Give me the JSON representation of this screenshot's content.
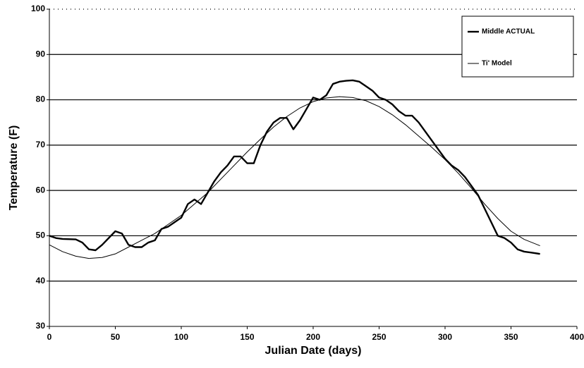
{
  "chart_data": {
    "type": "line",
    "xlabel": "Julian Date (days)",
    "ylabel": "Temperature (F)",
    "xlim": [
      0,
      400
    ],
    "xticks": [
      0,
      50,
      100,
      150,
      200,
      250,
      300,
      350,
      400
    ],
    "ylim": [
      30,
      100
    ],
    "yticks": [
      30,
      40,
      50,
      60,
      70,
      80,
      90,
      100
    ],
    "grid": true,
    "legend": "upper right",
    "series": [
      {
        "name": "Middle ACTUAL",
        "color": "#000000",
        "x": [
          0,
          5,
          10,
          20,
          25,
          30,
          35,
          40,
          45,
          50,
          55,
          60,
          65,
          70,
          75,
          80,
          85,
          90,
          95,
          100,
          105,
          110,
          115,
          120,
          125,
          130,
          135,
          140,
          145,
          150,
          155,
          160,
          165,
          170,
          175,
          180,
          185,
          190,
          195,
          200,
          205,
          210,
          215,
          220,
          225,
          230,
          235,
          240,
          245,
          250,
          255,
          260,
          265,
          270,
          275,
          280,
          285,
          290,
          295,
          300,
          305,
          310,
          315,
          320,
          325,
          330,
          335,
          340,
          345,
          350,
          355,
          360,
          365,
          372
        ],
        "values": [
          50,
          49.5,
          49.3,
          49.2,
          48.5,
          47,
          46.8,
          48,
          49.5,
          51,
          50.5,
          48,
          47.5,
          47.5,
          48.5,
          49,
          51.5,
          52,
          53,
          54,
          57,
          58,
          57,
          59.5,
          62,
          64,
          65.5,
          67.5,
          67.5,
          66,
          66,
          70,
          73,
          75,
          76,
          76,
          73.5,
          75.5,
          78,
          80.5,
          80,
          81,
          83.5,
          84,
          84.2,
          84.3,
          84,
          83,
          82,
          80.5,
          80,
          79,
          77.5,
          76.5,
          76.5,
          75,
          73,
          71,
          69,
          67,
          65.5,
          64.5,
          63,
          61,
          59,
          56,
          53,
          50,
          49.5,
          48.5,
          47,
          46.5,
          46.3,
          46
        ]
      },
      {
        "name": "Ti' Model",
        "color": "#000000",
        "x": [
          0,
          10,
          20,
          30,
          40,
          50,
          60,
          70,
          80,
          90,
          100,
          110,
          120,
          130,
          140,
          150,
          160,
          170,
          180,
          190,
          200,
          210,
          220,
          230,
          240,
          250,
          260,
          270,
          280,
          290,
          300,
          310,
          320,
          330,
          340,
          350,
          360,
          372
        ],
        "values": [
          48,
          46.5,
          45.5,
          45,
          45.2,
          46,
          47.5,
          49,
          50.5,
          52.5,
          54.5,
          57,
          59.5,
          62.5,
          65.5,
          68.5,
          71.3,
          74,
          76.3,
          78.2,
          79.6,
          80.4,
          80.7,
          80.5,
          79.8,
          78.5,
          76.7,
          74.5,
          72,
          69.5,
          66.8,
          63.8,
          60.5,
          57,
          53.8,
          51,
          49.2,
          47.8
        ]
      }
    ]
  }
}
